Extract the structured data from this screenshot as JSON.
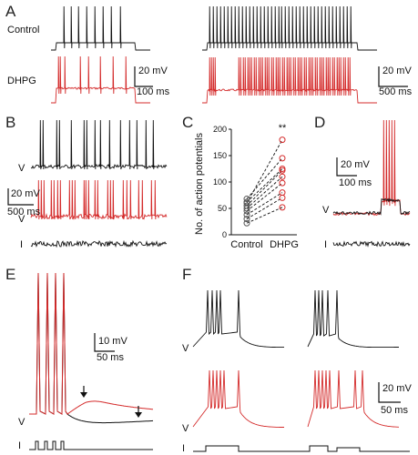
{
  "panel_labels": {
    "A": "A",
    "B": "B",
    "C": "C",
    "D": "D",
    "E": "E",
    "F": "F"
  },
  "panelA": {
    "control_label": "Control",
    "dhpg_label": "DHPG",
    "scale_left": {
      "mv": "20 mV",
      "ms": "100 ms"
    },
    "scale_right": {
      "mv": "20 mV",
      "ms": "500 ms"
    }
  },
  "panelB": {
    "v_label_top": "V",
    "v_label_bottom": "V",
    "i_label": "I",
    "scale": {
      "mv": "20 mV",
      "ms": "500 ms"
    }
  },
  "panelD": {
    "v_label": "V",
    "i_label": "I",
    "scale": {
      "mv": "20 mV",
      "ms": "100 ms"
    }
  },
  "panelE": {
    "v_label": "V",
    "i_label": "I",
    "scale": {
      "mv": "10 mV",
      "ms": "50 ms"
    }
  },
  "panelF": {
    "v_label_1": "V",
    "v_label_2": "V",
    "i_label": "I",
    "scale": {
      "mv": "20 mV",
      "ms": "50 ms"
    }
  },
  "colors": {
    "control": "#111111",
    "dhpg": "#d42b2b"
  },
  "chart_data": {
    "type": "scatter",
    "ylabel": "No. of action potentials",
    "categories": [
      "Control",
      "DHPG"
    ],
    "ylim": [
      0,
      200
    ],
    "yticks": [
      0,
      50,
      100,
      150,
      200
    ],
    "significance": "**",
    "pairs": [
      [
        22,
        52
      ],
      [
        30,
        70
      ],
      [
        38,
        80
      ],
      [
        45,
        98
      ],
      [
        50,
        110
      ],
      [
        55,
        122
      ],
      [
        62,
        125
      ],
      [
        68,
        145
      ],
      [
        60,
        180
      ]
    ]
  }
}
